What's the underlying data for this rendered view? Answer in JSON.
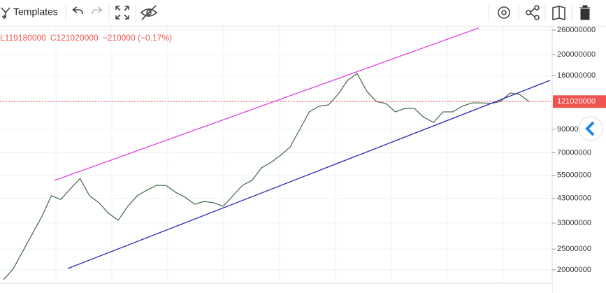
{
  "toolbar": {
    "templates": "Templates"
  },
  "chart_data": {
    "type": "line",
    "ohlc": [
      "L119180000",
      "C121020000",
      "−210000 (−0.17%)"
    ],
    "log_scale": true,
    "grid": true,
    "ylim": [
      17350000,
      270000000
    ],
    "yticks": [
      20000000,
      25000000,
      33000000,
      43000000,
      55000000,
      70000000,
      90000000,
      160000000,
      200000000,
      260000000
    ],
    "last_price": 121020000,
    "last_price_color": "#ef5350",
    "categories": [
      null,
      null,
      null,
      null,
      null,
      null,
      null,
      null,
      null,
      null,
      null,
      null,
      null,
      null,
      null,
      null,
      null,
      null,
      null,
      null,
      null,
      null,
      null,
      null,
      null,
      null,
      null,
      null,
      null,
      null,
      null,
      null,
      null,
      null,
      null,
      null,
      null,
      null,
      null,
      null,
      null,
      null,
      null,
      null,
      null,
      null,
      null,
      null,
      null,
      null,
      null,
      null,
      null,
      null,
      null,
      null
    ],
    "series": [
      {
        "color": "#4f6f52",
        "values": [
          18000000,
          20200000,
          24300000,
          29300000,
          35300000,
          44200000,
          42500000,
          47600000,
          53200000,
          44200000,
          41000000,
          36600000,
          34000000,
          39500000,
          44200000,
          46900000,
          49400000,
          49400000,
          45900000,
          43500000,
          40400000,
          41600000,
          41000000,
          39500000,
          44200000,
          49400000,
          52100000,
          59600000,
          63200000,
          68200000,
          74600000,
          89900000,
          108400000,
          115100000,
          116800000,
          130700000,
          151700000,
          163500000,
          135600000,
          121200000,
          118600000,
          108400000,
          112500000,
          112500000,
          102100000,
          96900000,
          108400000,
          108400000,
          115100000,
          119400000,
          119400000,
          118600000,
          121200000,
          132600000,
          130700000,
          121020000
        ]
      }
    ]
  }
}
